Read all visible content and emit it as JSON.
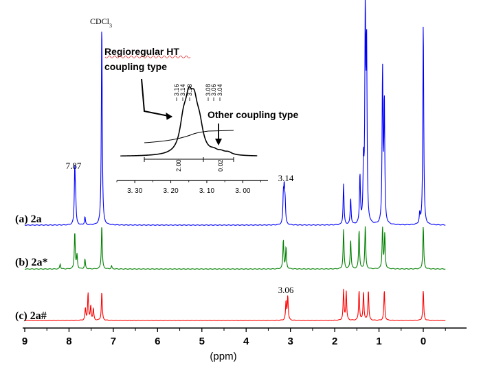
{
  "chart_data": {
    "type": "line",
    "title": "",
    "xlabel": "(ppm)",
    "ylabel": "",
    "xlim": [
      9,
      -0.5
    ],
    "x_reversed": true,
    "x_ticks": [
      "9",
      "8",
      "7",
      "6",
      "5",
      "4",
      "3",
      "2",
      "1",
      "0"
    ],
    "series": [
      {
        "name": "(a) 2a",
        "color": "#0000ff",
        "peaks": [
          {
            "ppm": 7.87,
            "height": 0.28
          },
          {
            "ppm": 7.85,
            "height": 0.1
          },
          {
            "ppm": 7.64,
            "height": 0.04
          },
          {
            "ppm": 7.26,
            "height": 1.0
          },
          {
            "ppm": 3.16,
            "height": 0.13
          },
          {
            "ppm": 3.14,
            "height": 0.16
          },
          {
            "ppm": 3.12,
            "height": 0.1
          },
          {
            "ppm": 1.8,
            "height": 0.2
          },
          {
            "ppm": 1.64,
            "height": 0.13
          },
          {
            "ppm": 1.43,
            "height": 0.24
          },
          {
            "ppm": 1.35,
            "height": 0.28
          },
          {
            "ppm": 1.31,
            "height": 1.0
          },
          {
            "ppm": 1.28,
            "height": 0.85
          },
          {
            "ppm": 0.92,
            "height": 0.75
          },
          {
            "ppm": 0.88,
            "height": 0.6
          },
          {
            "ppm": 0.08,
            "height": 0.05
          },
          {
            "ppm": 0.0,
            "height": 1.0
          }
        ]
      },
      {
        "name": "(b) 2a*",
        "color": "#008000",
        "peaks": [
          {
            "ppm": 8.2,
            "height": 0.05
          },
          {
            "ppm": 7.87,
            "height": 0.38
          },
          {
            "ppm": 7.82,
            "height": 0.14
          },
          {
            "ppm": 7.64,
            "height": 0.1
          },
          {
            "ppm": 7.26,
            "height": 0.45
          },
          {
            "ppm": 7.04,
            "height": 0.03
          },
          {
            "ppm": 3.16,
            "height": 0.3
          },
          {
            "ppm": 3.1,
            "height": 0.22
          },
          {
            "ppm": 1.8,
            "height": 0.4
          },
          {
            "ppm": 1.64,
            "height": 0.3
          },
          {
            "ppm": 1.45,
            "height": 0.4
          },
          {
            "ppm": 1.31,
            "height": 0.44
          },
          {
            "ppm": 0.92,
            "height": 0.42
          },
          {
            "ppm": 0.87,
            "height": 0.35
          },
          {
            "ppm": 0.0,
            "height": 0.44
          }
        ]
      },
      {
        "name": "(c) 2a#",
        "color": "#ff0000",
        "peaks": [
          {
            "ppm": 7.63,
            "height": 0.08
          },
          {
            "ppm": 7.57,
            "height": 0.19
          },
          {
            "ppm": 7.51,
            "height": 0.1
          },
          {
            "ppm": 7.45,
            "height": 0.08
          },
          {
            "ppm": 7.26,
            "height": 0.2
          },
          {
            "ppm": 3.1,
            "height": 0.13
          },
          {
            "ppm": 3.06,
            "height": 0.17
          },
          {
            "ppm": 1.8,
            "height": 0.21
          },
          {
            "ppm": 1.74,
            "height": 0.2
          },
          {
            "ppm": 1.45,
            "height": 0.21
          },
          {
            "ppm": 1.35,
            "height": 0.2
          },
          {
            "ppm": 1.24,
            "height": 0.21
          },
          {
            "ppm": 0.88,
            "height": 0.21
          },
          {
            "ppm": 0.0,
            "height": 0.21
          }
        ]
      }
    ],
    "annotations": [
      "CDCl3",
      "7.87",
      "3.14",
      "3.06"
    ],
    "inset": {
      "label_main": "Regioregular HT",
      "label_main_line2": "coupling type",
      "label_other": "Other coupling type",
      "peak_labels": [
        "3.16",
        "3.14",
        "3.13",
        "3.08",
        "3.06",
        "3.04"
      ],
      "integrals": [
        "2.00",
        "0.02"
      ],
      "x_ticks": [
        "3. 30",
        "3. 20",
        "3. 10",
        "3. 00"
      ],
      "xlim": [
        3.35,
        2.93
      ]
    }
  }
}
